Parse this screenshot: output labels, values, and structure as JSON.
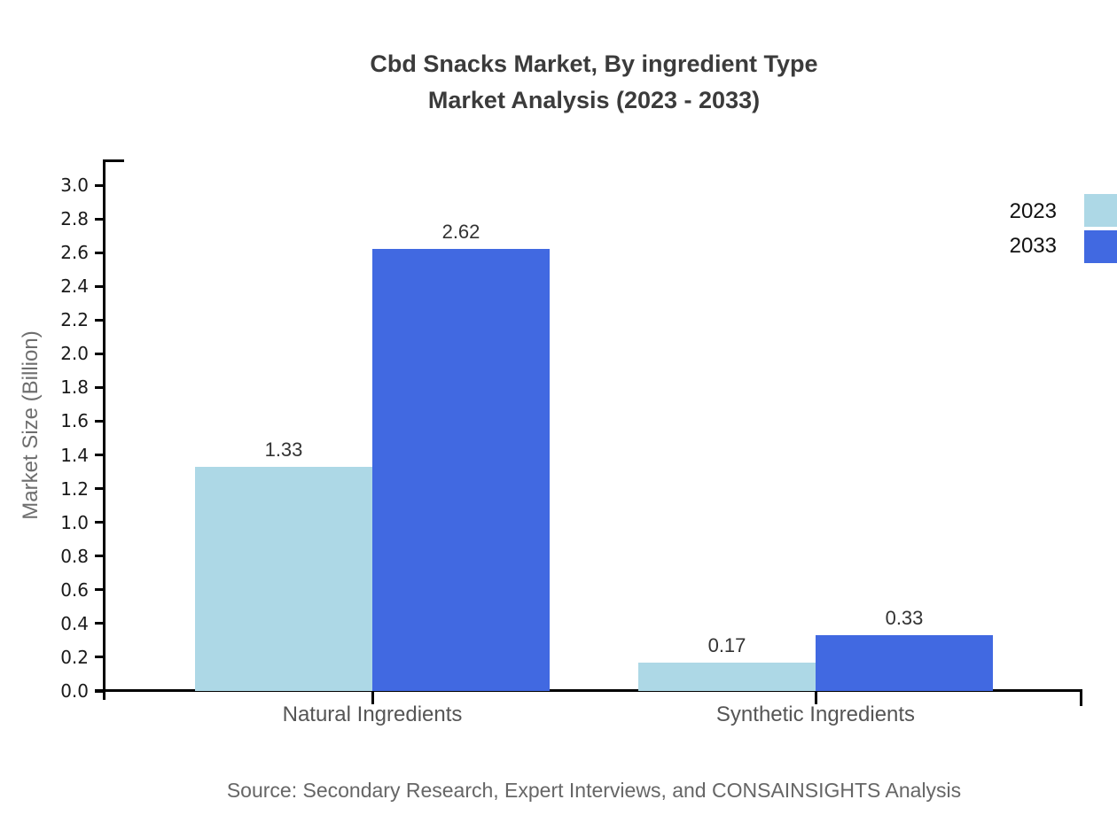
{
  "title": {
    "line1": "Cbd Snacks Market, By ingredient Type",
    "line2": "Market Analysis (2023 - 2033)"
  },
  "source": "Source: Secondary Research, Expert Interviews, and CONSAINSIGHTS Analysis",
  "legend": {
    "items": [
      {
        "label": "2023",
        "color": "#ADD8E6"
      },
      {
        "label": "2033",
        "color": "#4169E1"
      }
    ]
  },
  "colors": {
    "series_2023": "#ADD8E6",
    "series_2033": "#4169E1",
    "axis": "#000000",
    "title_text": "#3b3b3b",
    "tick_text": "#1a1a1a",
    "category_text": "#555555",
    "muted_text": "#6e6e6e",
    "source_text": "#666666"
  },
  "chart_data": {
    "type": "bar",
    "title": "Cbd Snacks Market, By ingredient Type Market Analysis (2023 - 2033)",
    "categories": [
      "Natural Ingredients",
      "Synthetic Ingredients"
    ],
    "series": [
      {
        "name": "2023",
        "color": "#ADD8E6",
        "values": [
          1.33,
          0.17
        ],
        "value_labels": [
          "1.33",
          "0.17"
        ]
      },
      {
        "name": "2033",
        "color": "#4169E1",
        "values": [
          2.62,
          0.33
        ],
        "value_labels": [
          "2.62",
          "0.33"
        ]
      }
    ],
    "xlabel": "",
    "ylabel": "Market Size (Billion)",
    "ylim": [
      0,
      3.0
    ],
    "ytick_step": 0.2,
    "ytick_labels": [
      "0.0",
      "0.2",
      "0.4",
      "0.6",
      "0.8",
      "1.0",
      "1.2",
      "1.4",
      "1.6",
      "1.8",
      "2.0",
      "2.2",
      "2.4",
      "2.6",
      "2.8",
      "3.0"
    ],
    "grid": false,
    "legend_position": "upper right, clipped at right edge"
  }
}
